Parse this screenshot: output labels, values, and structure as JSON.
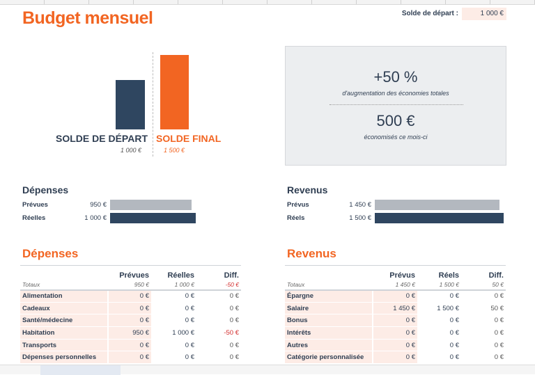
{
  "title": "Budget mensuel",
  "start_balance": {
    "label": "Solde de départ :",
    "value": "1 000 €"
  },
  "colors": {
    "accent": "#f26522",
    "dark": "#2f4660",
    "gray": "#b3b8bf",
    "negative": "#d32f2f"
  },
  "balance_chart": {
    "bars": [
      {
        "label": "SOLDE DE DÉPART",
        "value_text": "1 000 €",
        "value": 1000,
        "color": "#2f4660"
      },
      {
        "label": "SOLDE FINAL",
        "value_text": "1 500 €",
        "value": 1500,
        "color": "#f26522"
      }
    ]
  },
  "summary": {
    "percent": "+50 %",
    "percent_caption": "d'augmentation des économies totales",
    "saved": "500 €",
    "saved_caption": "économisés ce mois-ci"
  },
  "expenses_summary": {
    "title": "Dépenses",
    "rows": [
      {
        "label": "Prévues",
        "value_text": "950 €",
        "value": 950
      },
      {
        "label": "Réelles",
        "value_text": "1 000 €",
        "value": 1000
      }
    ]
  },
  "income_summary": {
    "title": "Revenus",
    "rows": [
      {
        "label": "Prévus",
        "value_text": "1 450 €",
        "value": 1450
      },
      {
        "label": "Réels",
        "value_text": "1 500 €",
        "value": 1500
      }
    ]
  },
  "expenses_table": {
    "title": "Dépenses",
    "headers": [
      "Prévues",
      "Réelles",
      "Diff."
    ],
    "totals": {
      "label": "Totaux",
      "planned": "950 €",
      "actual": "1 000 €",
      "diff": "-50 €"
    },
    "rows": [
      {
        "label": "Alimentation",
        "planned": "0 €",
        "actual": "0 €",
        "diff": "0 €"
      },
      {
        "label": "Cadeaux",
        "planned": "0 €",
        "actual": "0 €",
        "diff": "0 €"
      },
      {
        "label": "Santé/médecine",
        "planned": "0 €",
        "actual": "0 €",
        "diff": "0 €"
      },
      {
        "label": "Habitation",
        "planned": "950 €",
        "actual": "1 000 €",
        "diff": "-50 €"
      },
      {
        "label": "Transports",
        "planned": "0 €",
        "actual": "0 €",
        "diff": "0 €"
      },
      {
        "label": "Dépenses personnelles",
        "planned": "0 €",
        "actual": "0 €",
        "diff": "0 €"
      }
    ]
  },
  "income_table": {
    "title": "Revenus",
    "headers": [
      "Prévus",
      "Réels",
      "Diff."
    ],
    "totals": {
      "label": "Totaux",
      "planned": "1 450 €",
      "actual": "1 500 €",
      "diff": "50 €"
    },
    "rows": [
      {
        "label": "Épargne",
        "planned": "0 €",
        "actual": "0 €",
        "diff": "0 €"
      },
      {
        "label": "Salaire",
        "planned": "1 450 €",
        "actual": "1 500 €",
        "diff": "50 €"
      },
      {
        "label": "Bonus",
        "planned": "0 €",
        "actual": "0 €",
        "diff": "0 €"
      },
      {
        "label": "Intérêts",
        "planned": "0 €",
        "actual": "0 €",
        "diff": "0 €"
      },
      {
        "label": "Autres",
        "planned": "0 €",
        "actual": "0 €",
        "diff": "0 €"
      },
      {
        "label": "Catégorie personnalisée",
        "planned": "0 €",
        "actual": "0 €",
        "diff": "0 €"
      }
    ]
  }
}
